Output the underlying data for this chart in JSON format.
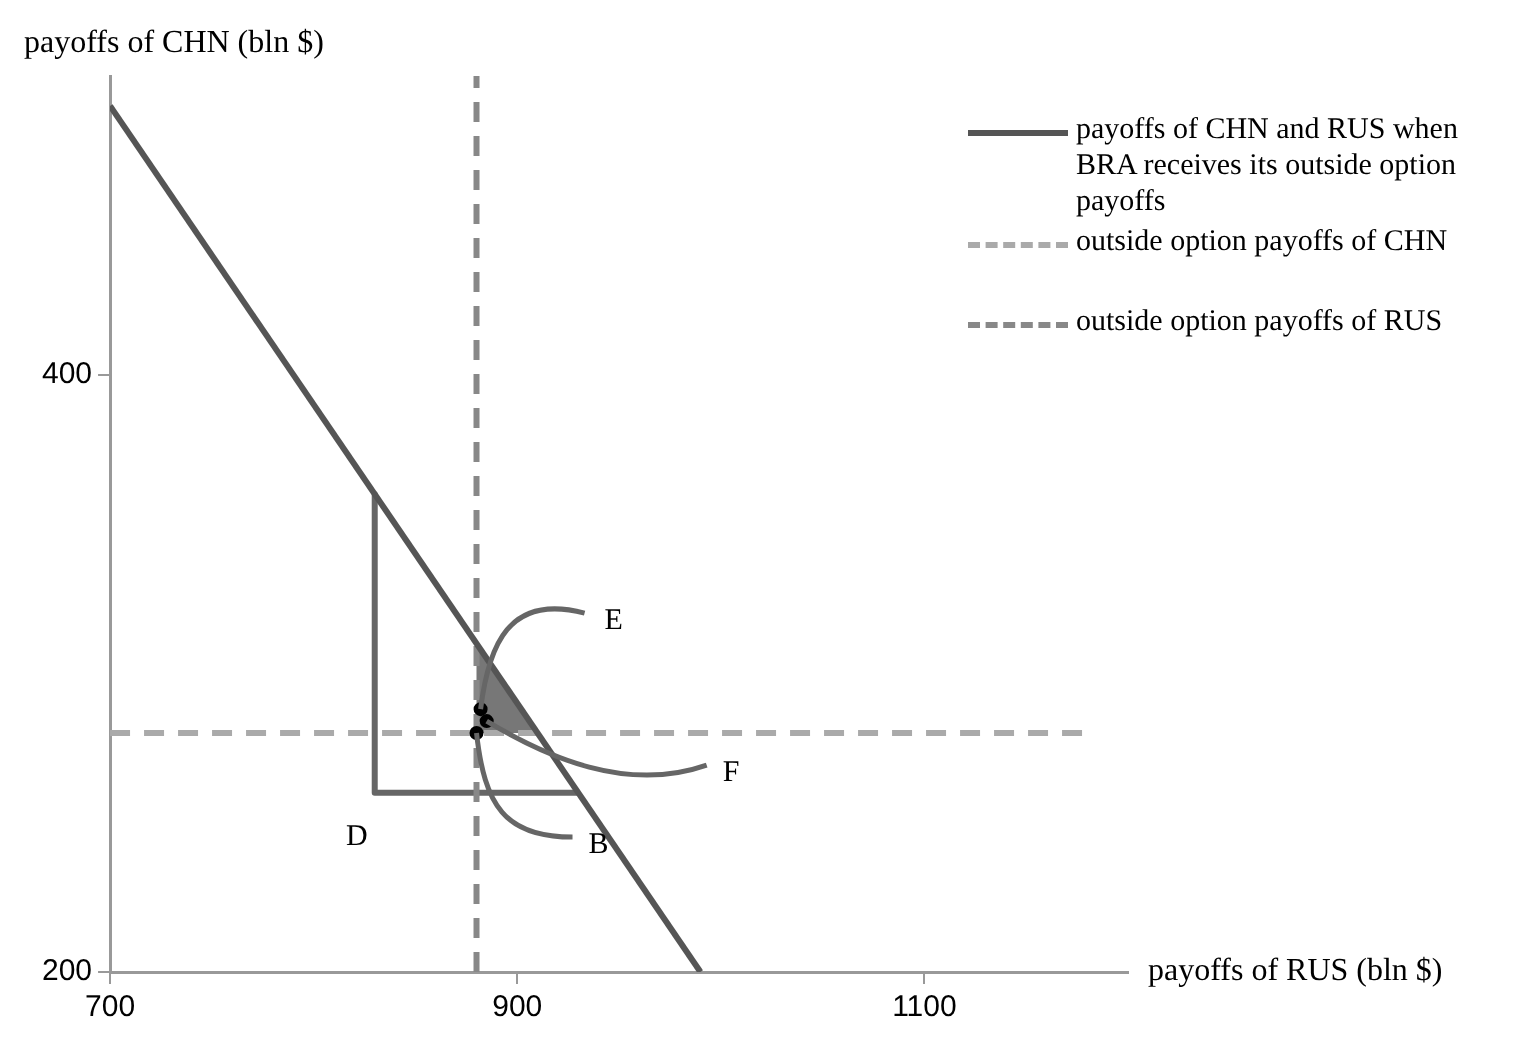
{
  "chart_data": {
    "type": "line",
    "xlabel": "payoffs of RUS (bln $)",
    "ylabel": "payoffs of CHN (bln $)",
    "xlim": [
      700,
      1200
    ],
    "xticks": [
      700,
      900,
      1100
    ],
    "ylim": [
      200,
      500
    ],
    "yticks": [
      200,
      400
    ],
    "legend": "top right",
    "series": [
      {
        "name": "payoffs of CHN and RUS when BRA receives its outside option payoffs",
        "color": "#555555",
        "line_style": "solid",
        "x": [
          700,
          990
        ],
        "values": [
          490,
          200
        ]
      },
      {
        "name": "outside option payoffs of CHN",
        "color": "#aaaaaa",
        "line_style": "dashed",
        "x": [
          700,
          1180
        ],
        "values": [
          280,
          280
        ]
      },
      {
        "name": "outside option payoffs of RUS",
        "color": "#888888",
        "line_style": "dashed",
        "x": [
          880,
          880
        ],
        "values": [
          200,
          500
        ]
      },
      {
        "color": "#666666",
        "line_style": "solid",
        "x": [
          830,
          830,
          930
        ],
        "values": [
          360,
          260,
          260
        ]
      },
      {
        "type": "area",
        "color": "#777777",
        "x": [
          880,
          880,
          910,
          880
        ],
        "values": [
          280,
          310,
          280,
          280
        ]
      },
      {
        "type": "scatter",
        "color": "#000000",
        "marker": "circle",
        "x": [
          882,
          885,
          880
        ],
        "values": [
          288,
          284,
          280
        ]
      }
    ],
    "annotations": [
      {
        "text": "E",
        "x": 882,
        "y": 288
      },
      {
        "text": "F",
        "x": 885,
        "y": 284
      },
      {
        "text": "B",
        "x": 880,
        "y": 280
      },
      {
        "text": "D",
        "x": 830,
        "y": 260
      }
    ]
  }
}
